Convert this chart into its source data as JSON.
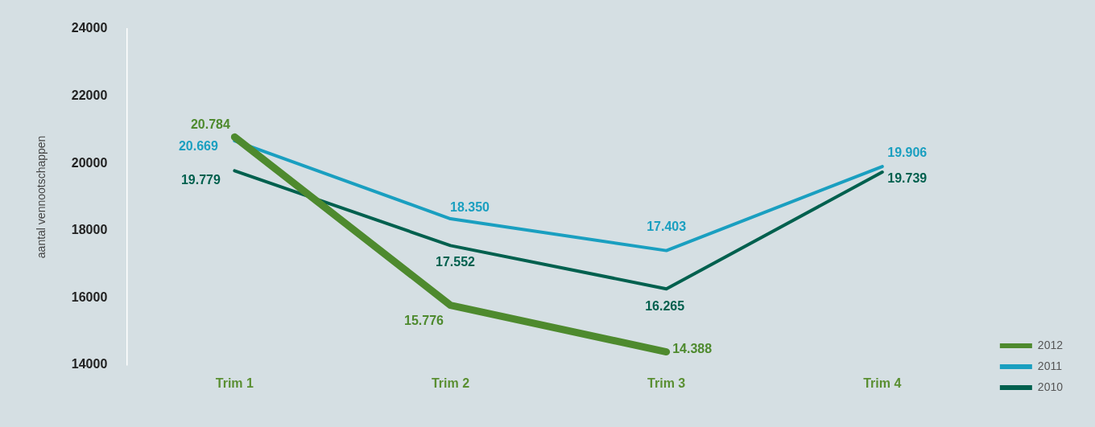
{
  "chart_data": {
    "type": "line",
    "ylabel": "aantal vennootschappen",
    "categories": [
      "Trim 1",
      "Trim 2",
      "Trim 3",
      "Trim 4"
    ],
    "ylim": [
      14000,
      24000
    ],
    "yticks": [
      14000,
      16000,
      18000,
      20000,
      22000,
      24000
    ],
    "legend": "bottom right",
    "marker": "none",
    "line_style": "solid",
    "series": [
      {
        "name": "2012",
        "color": "#4e8a2e",
        "values": [
          20784,
          15776,
          14388,
          null
        ],
        "value_labels": [
          "20.784",
          "15.776",
          "14.388",
          null
        ]
      },
      {
        "name": "2011",
        "color": "#1a9fc0",
        "values": [
          20669,
          18350,
          17403,
          19906
        ],
        "value_labels": [
          "20.669",
          "18.350",
          "17.403",
          "19.906"
        ]
      },
      {
        "name": "2010",
        "color": "#00604e",
        "values": [
          19779,
          17552,
          16265,
          19739
        ],
        "value_labels": [
          "19.779",
          "17.552",
          "16.265",
          "19.739"
        ]
      }
    ]
  }
}
